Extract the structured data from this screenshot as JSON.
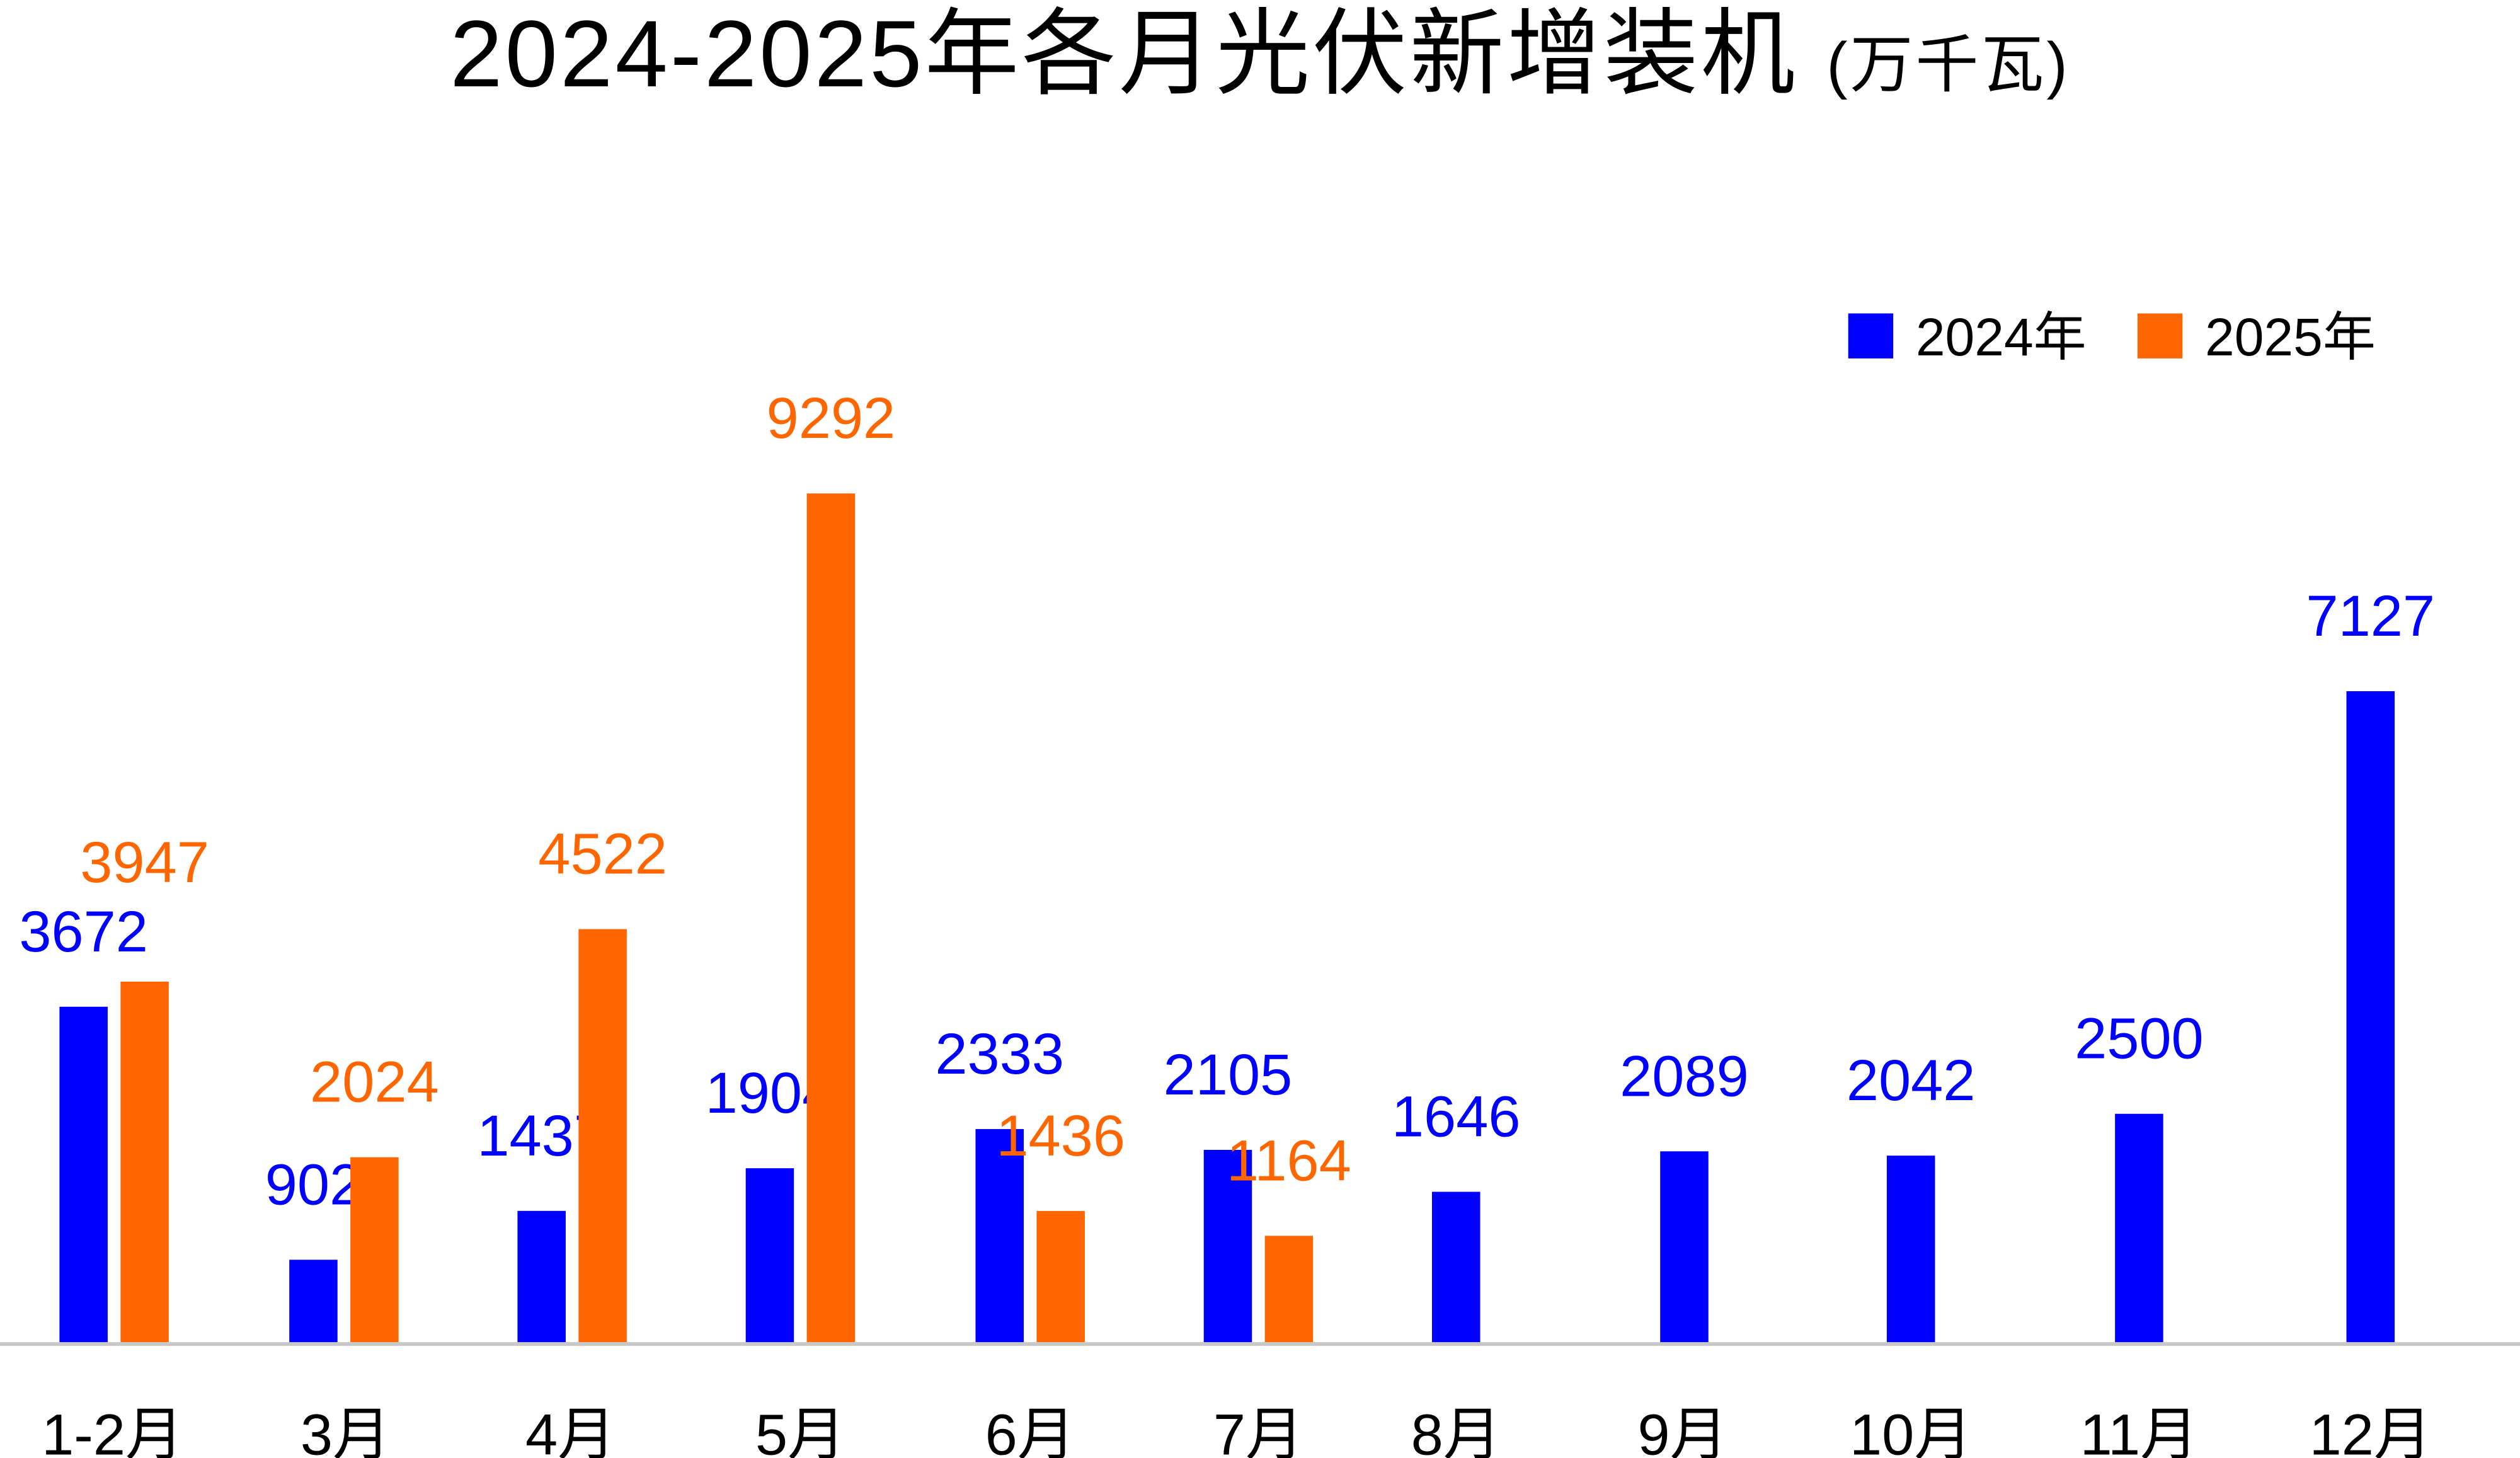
{
  "chart_data": {
    "type": "bar",
    "title": "2024-2025年各月光伏新增装机",
    "unit": "(万千瓦)",
    "xlabel": "",
    "ylabel": "",
    "ylim": [
      0,
      9292
    ],
    "grid": false,
    "legend_position": "top-right",
    "categories": [
      "1-2月",
      "3月",
      "4月",
      "5月",
      "6月",
      "7月",
      "8月",
      "9月",
      "10月",
      "11月",
      "12月"
    ],
    "series": [
      {
        "name": "2024年",
        "color": "#0000FF",
        "values": [
          3672,
          902,
          1437,
          1904,
          2333,
          2105,
          1646,
          2089,
          2042,
          2500,
          7127
        ]
      },
      {
        "name": "2025年",
        "color": "#FF6600",
        "values": [
          3947,
          2024,
          4522,
          9292,
          1436,
          1164,
          null,
          null,
          null,
          null,
          null
        ]
      }
    ]
  }
}
